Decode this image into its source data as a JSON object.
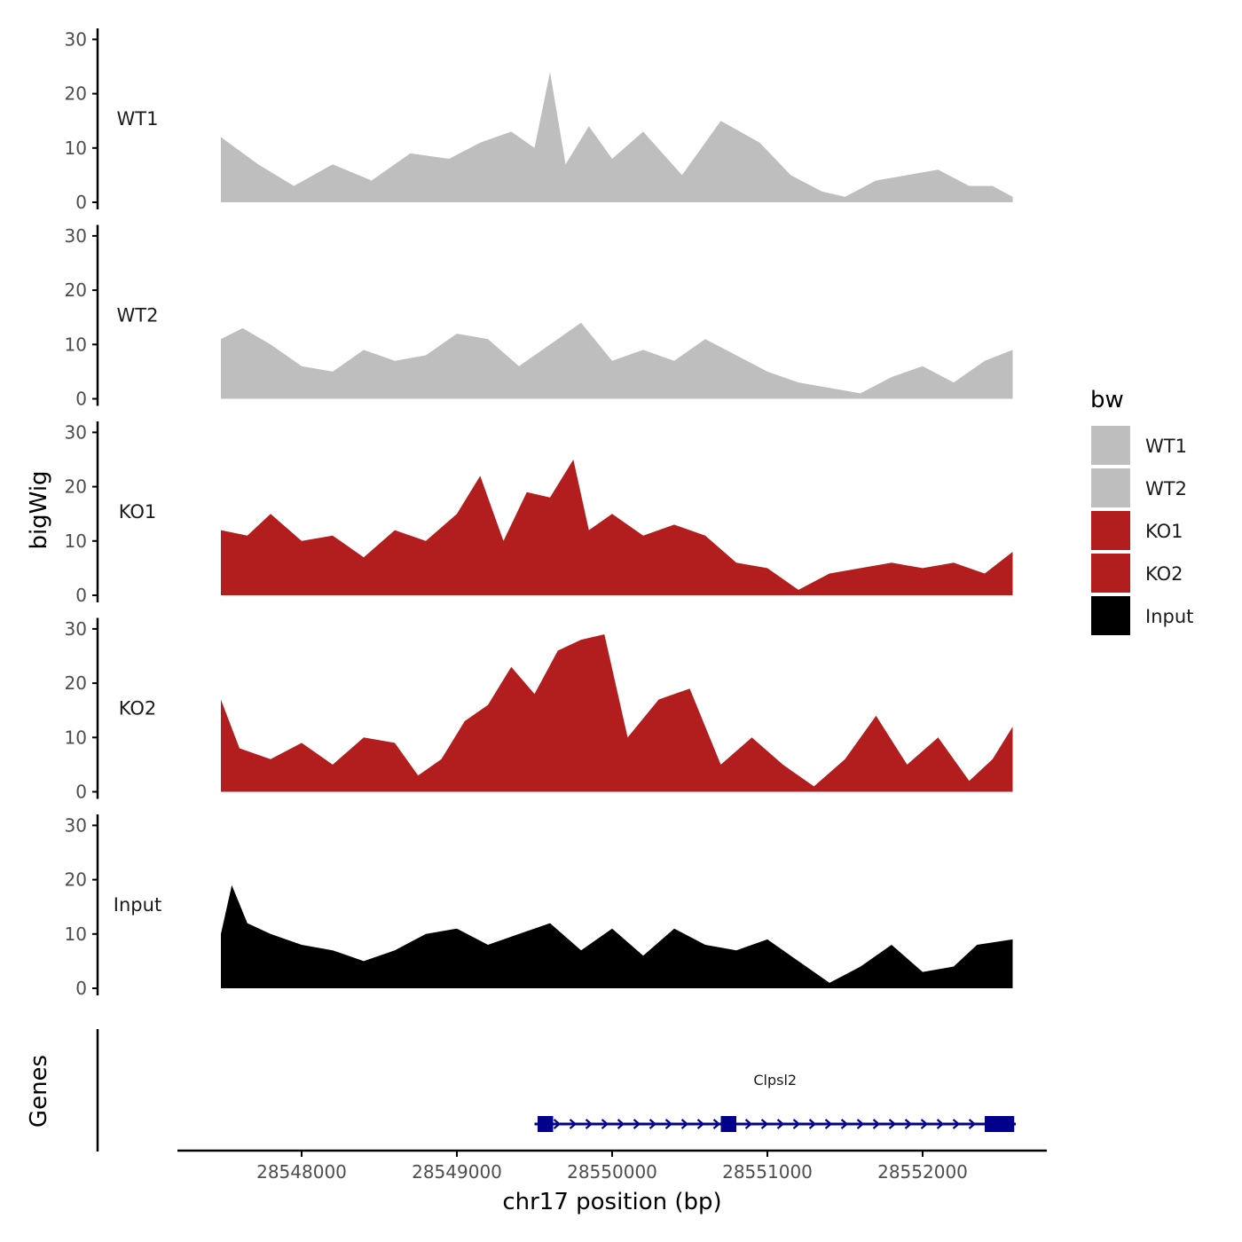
{
  "chart_data": {
    "type": "area",
    "title": "",
    "xlabel": "chr17 position (bp)",
    "ylabel": "bigWig",
    "genes_label": "Genes",
    "xlim": [
      28547200,
      28552800
    ],
    "ylim": [
      0,
      32
    ],
    "y_ticks": [
      0,
      10,
      20,
      30
    ],
    "x_ticks": [
      28548000,
      28549000,
      28550000,
      28551000,
      28552000
    ],
    "x_tick_labels": [
      "28548000",
      "28549000",
      "28550000",
      "28551000",
      "28552000"
    ],
    "legend": {
      "title": "bw",
      "position": "right",
      "entries": [
        {
          "label": "WT1",
          "color": "#bebebe"
        },
        {
          "label": "WT2",
          "color": "#bebebe"
        },
        {
          "label": "KO1",
          "color": "#b21e1e"
        },
        {
          "label": "KO2",
          "color": "#b21e1e"
        },
        {
          "label": "Input",
          "color": "#000000"
        }
      ]
    },
    "series": [
      {
        "name": "WT1",
        "color": "#bebebe",
        "x": [
          28547480,
          28547720,
          28547950,
          28548200,
          28548450,
          28548700,
          28548950,
          28549150,
          28549350,
          28549500,
          28549600,
          28549700,
          28549850,
          28550000,
          28550200,
          28550450,
          28550700,
          28550950,
          28551150,
          28551350,
          28551500,
          28551700,
          28551900,
          28552100,
          28552300,
          28552450,
          28552580
        ],
        "values": [
          12,
          7,
          3,
          7,
          4,
          9,
          8,
          11,
          13,
          10,
          24,
          7,
          14,
          8,
          13,
          5,
          15,
          11,
          5,
          2,
          1,
          4,
          5,
          6,
          3,
          3,
          1
        ]
      },
      {
        "name": "WT2",
        "color": "#bebebe",
        "x": [
          28547480,
          28547620,
          28547800,
          28548000,
          28548200,
          28548400,
          28548600,
          28548800,
          28549000,
          28549200,
          28549400,
          28549600,
          28549800,
          28550000,
          28550200,
          28550400,
          28550600,
          28550800,
          28551000,
          28551200,
          28551400,
          28551600,
          28551800,
          28552000,
          28552200,
          28552400,
          28552580
        ],
        "values": [
          11,
          13,
          10,
          6,
          5,
          9,
          7,
          8,
          12,
          11,
          6,
          10,
          14,
          7,
          9,
          7,
          11,
          8,
          5,
          3,
          2,
          1,
          4,
          6,
          3,
          7,
          9
        ]
      },
      {
        "name": "KO1",
        "color": "#b21e1e",
        "x": [
          28547480,
          28547650,
          28547800,
          28548000,
          28548200,
          28548400,
          28548600,
          28548800,
          28549000,
          28549150,
          28549300,
          28549450,
          28549600,
          28549750,
          28549850,
          28550000,
          28550200,
          28550400,
          28550600,
          28550800,
          28551000,
          28551200,
          28551400,
          28551600,
          28551800,
          28552000,
          28552200,
          28552400,
          28552580
        ],
        "values": [
          12,
          11,
          15,
          10,
          11,
          7,
          12,
          10,
          15,
          22,
          10,
          19,
          18,
          25,
          12,
          15,
          11,
          13,
          11,
          6,
          5,
          1,
          4,
          5,
          6,
          5,
          6,
          4,
          8
        ]
      },
      {
        "name": "KO2",
        "color": "#b21e1e",
        "x": [
          28547480,
          28547600,
          28547800,
          28548000,
          28548200,
          28548400,
          28548600,
          28548750,
          28548900,
          28549050,
          28549200,
          28549350,
          28549500,
          28549650,
          28549800,
          28549950,
          28550100,
          28550300,
          28550500,
          28550700,
          28550900,
          28551100,
          28551300,
          28551500,
          28551700,
          28551900,
          28552100,
          28552300,
          28552450,
          28552580
        ],
        "values": [
          17,
          8,
          6,
          9,
          5,
          10,
          9,
          3,
          6,
          13,
          16,
          23,
          18,
          26,
          28,
          29,
          10,
          17,
          19,
          5,
          10,
          5,
          1,
          6,
          14,
          5,
          10,
          2,
          6,
          12
        ]
      },
      {
        "name": "Input",
        "color": "#000000",
        "x": [
          28547480,
          28547550,
          28547650,
          28547800,
          28548000,
          28548200,
          28548400,
          28548600,
          28548800,
          28549000,
          28549200,
          28549400,
          28549600,
          28549800,
          28550000,
          28550200,
          28550400,
          28550600,
          28550800,
          28551000,
          28551200,
          28551400,
          28551600,
          28551800,
          28552000,
          28552200,
          28552350,
          28552580
        ],
        "values": [
          10,
          19,
          12,
          10,
          8,
          7,
          5,
          7,
          10,
          11,
          8,
          10,
          12,
          7,
          11,
          6,
          11,
          8,
          7,
          9,
          5,
          1,
          4,
          8,
          3,
          4,
          8,
          9
        ]
      }
    ],
    "genes": [
      {
        "name": "Clpsl2",
        "start": 28549500,
        "end": 28552600,
        "strand": "+",
        "exons": [
          [
            28549520,
            28549620
          ],
          [
            28550700,
            28550800
          ],
          [
            28552400,
            28552590
          ]
        ]
      }
    ]
  }
}
